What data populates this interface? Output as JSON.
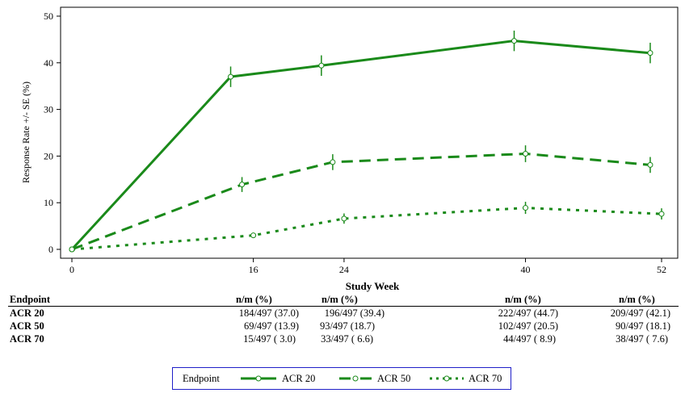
{
  "chart_data": {
    "type": "line",
    "xlabel": "Study Week",
    "ylabel": "Response Rate +/- SE (%)",
    "xlim": [
      0,
      52
    ],
    "ylim": [
      0,
      50
    ],
    "x_ticks": [
      "0",
      "16",
      "24",
      "40",
      "52"
    ],
    "y_ticks": [
      "0",
      "10",
      "20",
      "30",
      "40",
      "50"
    ],
    "color": "#1a8a1a",
    "series": [
      {
        "name": "ACR 20",
        "style": "solid",
        "x": [
          0,
          14,
          22,
          39,
          51
        ],
        "y": [
          0,
          37.0,
          39.4,
          44.7,
          42.1
        ],
        "se": [
          0,
          2.2,
          2.2,
          2.2,
          2.2
        ]
      },
      {
        "name": "ACR 50",
        "style": "dashed",
        "x": [
          0,
          15,
          23,
          40,
          51
        ],
        "y": [
          0,
          13.9,
          18.7,
          20.5,
          18.1
        ],
        "se": [
          0,
          1.6,
          1.7,
          1.8,
          1.7
        ]
      },
      {
        "name": "ACR 70",
        "style": "dotted",
        "x": [
          0,
          16,
          24,
          40,
          52
        ],
        "y": [
          0,
          3.0,
          6.6,
          8.9,
          7.6
        ],
        "se": [
          0,
          0,
          1.1,
          1.3,
          1.2
        ]
      }
    ],
    "grid": false
  },
  "risk_table": {
    "header_label": "Endpoint",
    "col_header": "n/m (%)",
    "rows": [
      {
        "label": "ACR 20",
        "cells": [
          "184/497 (37.0)",
          "196/497 (39.4)",
          "222/497 (44.7)",
          "209/497 (42.1)"
        ]
      },
      {
        "label": "ACR 50",
        "cells": [
          "69/497 (13.9)",
          "93/497 (18.7)",
          "102/497 (20.5)",
          "90/497 (18.1)"
        ]
      },
      {
        "label": "ACR 70",
        "cells": [
          "15/497 ( 3.0)",
          "33/497 ( 6.6)",
          "44/497 ( 8.9)",
          "38/497 ( 7.6)"
        ]
      }
    ]
  },
  "legend": {
    "title": "Endpoint",
    "items": [
      "ACR 20",
      "ACR 50",
      "ACR 70"
    ]
  }
}
